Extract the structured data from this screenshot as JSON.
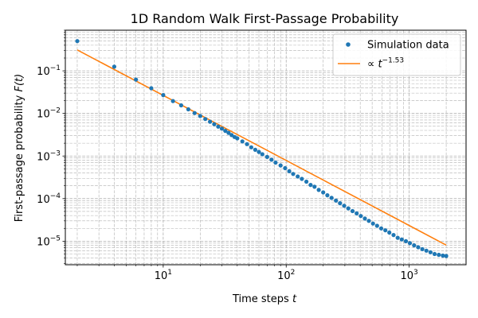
{
  "chart_data": {
    "type": "scatter",
    "title": "1D Random Walk First-Passage Probability",
    "xlabel": "Time steps",
    "xlabel_var": "t",
    "ylabel": "First-passage probability",
    "ylabel_var": "F(t)",
    "xscale": "log",
    "yscale": "log",
    "xlim": [
      1.6,
      2900
    ],
    "ylim": [
      2.8e-06,
      0.9
    ],
    "x_ticks": [
      {
        "value": 10,
        "base": "10",
        "exp": "1"
      },
      {
        "value": 100,
        "base": "10",
        "exp": "2"
      },
      {
        "value": 1000,
        "base": "10",
        "exp": "3"
      }
    ],
    "y_ticks": [
      {
        "value": 1e-05,
        "base": "10",
        "exp": "−5"
      },
      {
        "value": 0.0001,
        "base": "10",
        "exp": "−4"
      },
      {
        "value": 0.001,
        "base": "10",
        "exp": "−3"
      },
      {
        "value": 0.01,
        "base": "10",
        "exp": "−2"
      },
      {
        "value": 0.1,
        "base": "10",
        "exp": "−1"
      }
    ],
    "grid": "both",
    "legend_position": "top-right",
    "series": [
      {
        "name": "Simulation data",
        "kind": "scatter",
        "color": "#1f77b4",
        "x": [
          2,
          4,
          6,
          8,
          10,
          12,
          14,
          16,
          18,
          20,
          22,
          24,
          26,
          28,
          30,
          32,
          34,
          36,
          38,
          40,
          44,
          48,
          52,
          56,
          60,
          64,
          70,
          76,
          82,
          90,
          98,
          106,
          114,
          124,
          134,
          146,
          158,
          170,
          184,
          200,
          216,
          234,
          254,
          274,
          296,
          320,
          346,
          374,
          404,
          436,
          470,
          508,
          548,
          592,
          640,
          690,
          746,
          806,
          870,
          940,
          1014,
          1096,
          1184,
          1278,
          1380,
          1490,
          1610,
          1740,
          1880,
          2000
        ],
        "y": [
          0.5,
          0.125,
          0.0625,
          0.039,
          0.027,
          0.0195,
          0.0155,
          0.0125,
          0.0102,
          0.0087,
          0.0074,
          0.0064,
          0.0056,
          0.0049,
          0.0044,
          0.0039,
          0.0035,
          0.0031,
          0.0028,
          0.0026,
          0.0022,
          0.0019,
          0.0016,
          0.0014,
          0.00125,
          0.0011,
          0.00095,
          0.00082,
          0.0007,
          0.0006,
          0.00052,
          0.00044,
          0.00038,
          0.00033,
          0.00029,
          0.00025,
          0.00021,
          0.00019,
          0.00016,
          0.00014,
          0.00012,
          0.000104,
          9e-05,
          7.8e-05,
          6.8e-05,
          5.9e-05,
          5.1e-05,
          4.5e-05,
          3.9e-05,
          3.4e-05,
          3e-05,
          2.6e-05,
          2.3e-05,
          2e-05,
          1.8e-05,
          1.6e-05,
          1.4e-05,
          1.2e-05,
          1.1e-05,
          1e-05,
          9e-06,
          8e-06,
          7.2e-06,
          6.5e-06,
          6e-06,
          5.5e-06,
          5e-06,
          4.8e-06,
          4.6e-06,
          4.5e-06
        ]
      },
      {
        "name": "∝ t^−1.53",
        "legend_prefix": "∝",
        "legend_var": "t",
        "legend_exp": "−1.53",
        "kind": "line",
        "color": "#ff7f0e",
        "x": [
          2,
          2000
        ],
        "y": [
          0.31,
          8.1e-06
        ]
      }
    ]
  }
}
